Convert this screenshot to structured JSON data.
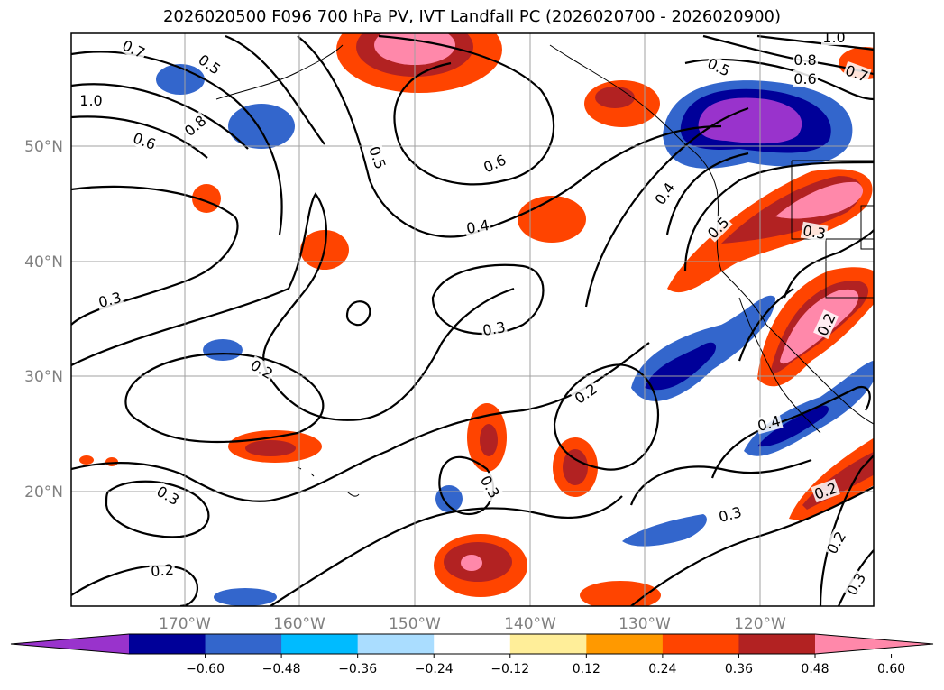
{
  "title": "2026020500 F096 700 hPa PV, IVT Landfall PC (2026020700 - 2026020900)",
  "grid": {
    "lon_labels": [
      "170°W",
      "160°W",
      "150°W",
      "140°W",
      "130°W",
      "120°W"
    ],
    "lat_labels": [
      "50°N",
      "40°N",
      "30°N",
      "20°N"
    ]
  },
  "contour_labels": [
    "0.7",
    "0.5",
    "1.0",
    "0.8",
    "0.6",
    "1.0",
    "0.8",
    "0.7",
    "0.5",
    "0.6",
    "0.5",
    "0.6",
    "0.4",
    "0.4",
    "0.5",
    "0.3",
    "0.3",
    "0.3",
    "0.2",
    "0.2",
    "0.4",
    "0.2",
    "0.3",
    "0.3",
    "0.2",
    "0.2",
    "0.2",
    "0.3",
    "0.3"
  ],
  "colorbar": {
    "ticks": [
      "−0.60",
      "−0.48",
      "−0.36",
      "−0.24",
      "−0.12",
      "0.12",
      "0.24",
      "0.36",
      "0.48",
      "0.60"
    ],
    "colors": [
      "#9933cc",
      "#000099",
      "#3366cc",
      "#00bbff",
      "#aaddff",
      "#ffffff",
      "#ffee99",
      "#ff9900",
      "#ff4400",
      "#b22222",
      "#ff88aa",
      "#ff88aa"
    ]
  }
}
